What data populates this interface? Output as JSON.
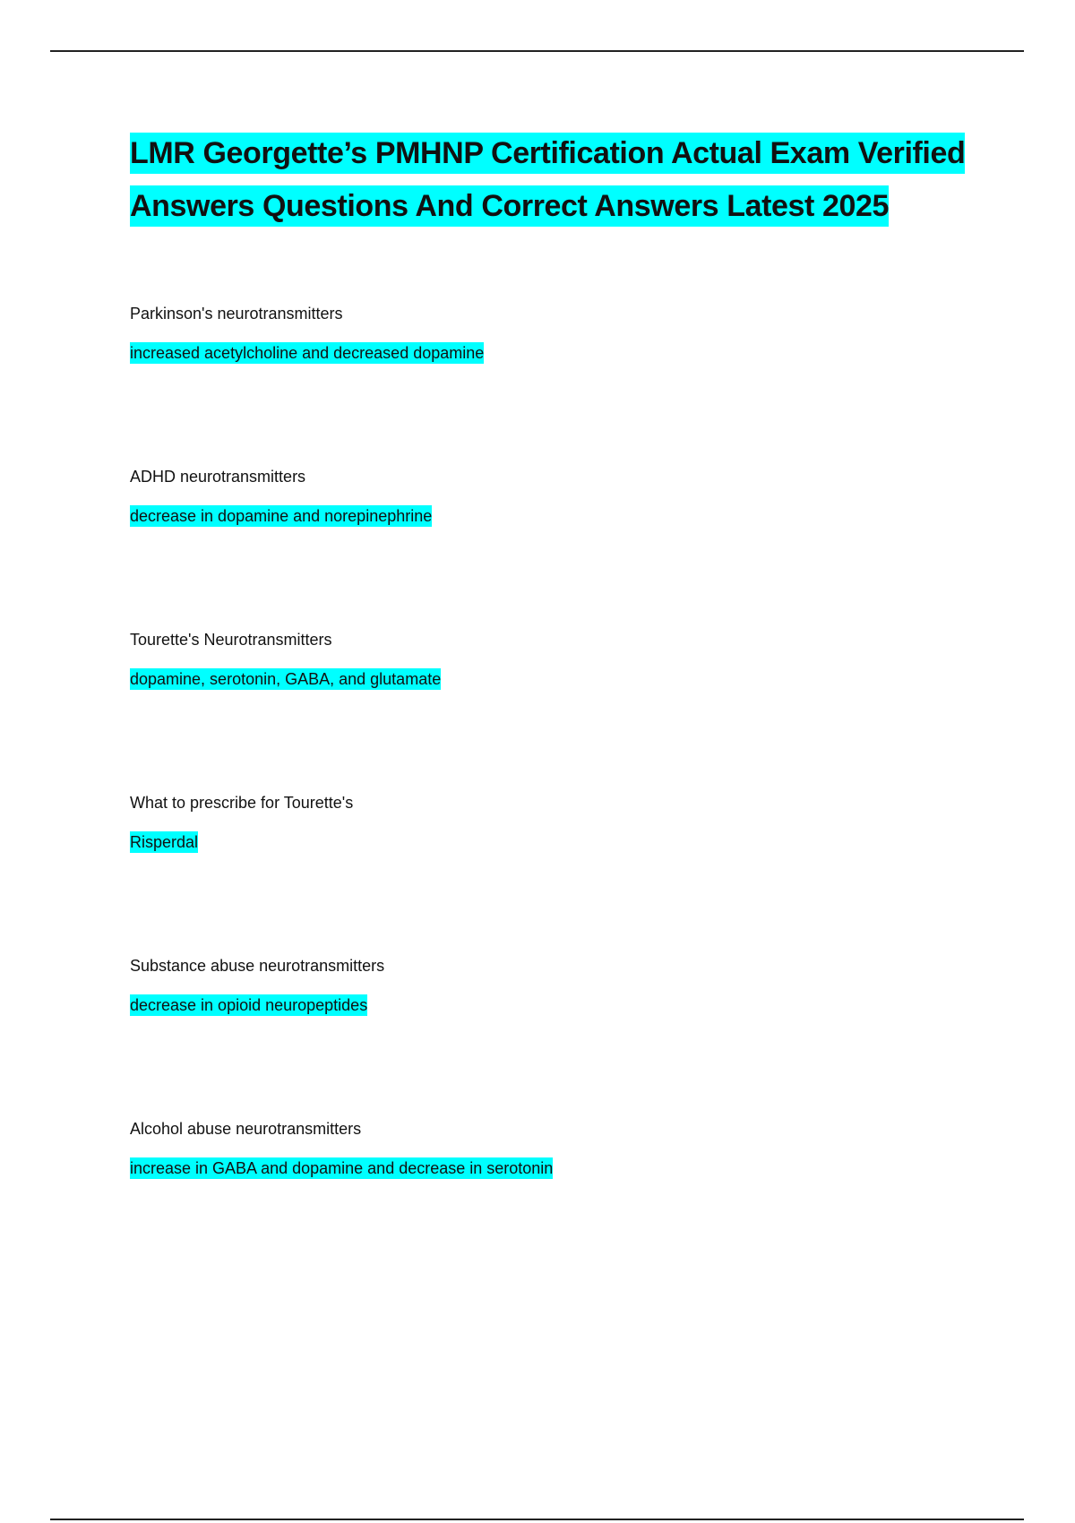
{
  "title": "LMR Georgette’s PMHNP Certification Actual Exam Verified Answers Questions And Correct Answers Latest 2025",
  "highlight_color": "#00ffff",
  "items": [
    {
      "question": "Parkinson's neurotransmitters",
      "answer": "increased acetylcholine and decreased dopamine"
    },
    {
      "question": "ADHD neurotransmitters",
      "answer": "decrease in dopamine and norepinephrine"
    },
    {
      "question": "Tourette's Neurotransmitters",
      "answer": "dopamine, serotonin, GABA, and glutamate"
    },
    {
      "question": "What to prescribe for Tourette's",
      "answer": "Risperdal"
    },
    {
      "question": "Substance abuse neurotransmitters",
      "answer": "decrease in opioid neuropeptides"
    },
    {
      "question": "Alcohol abuse neurotransmitters",
      "answer": "increase in GABA and dopamine and decrease in serotonin"
    }
  ]
}
